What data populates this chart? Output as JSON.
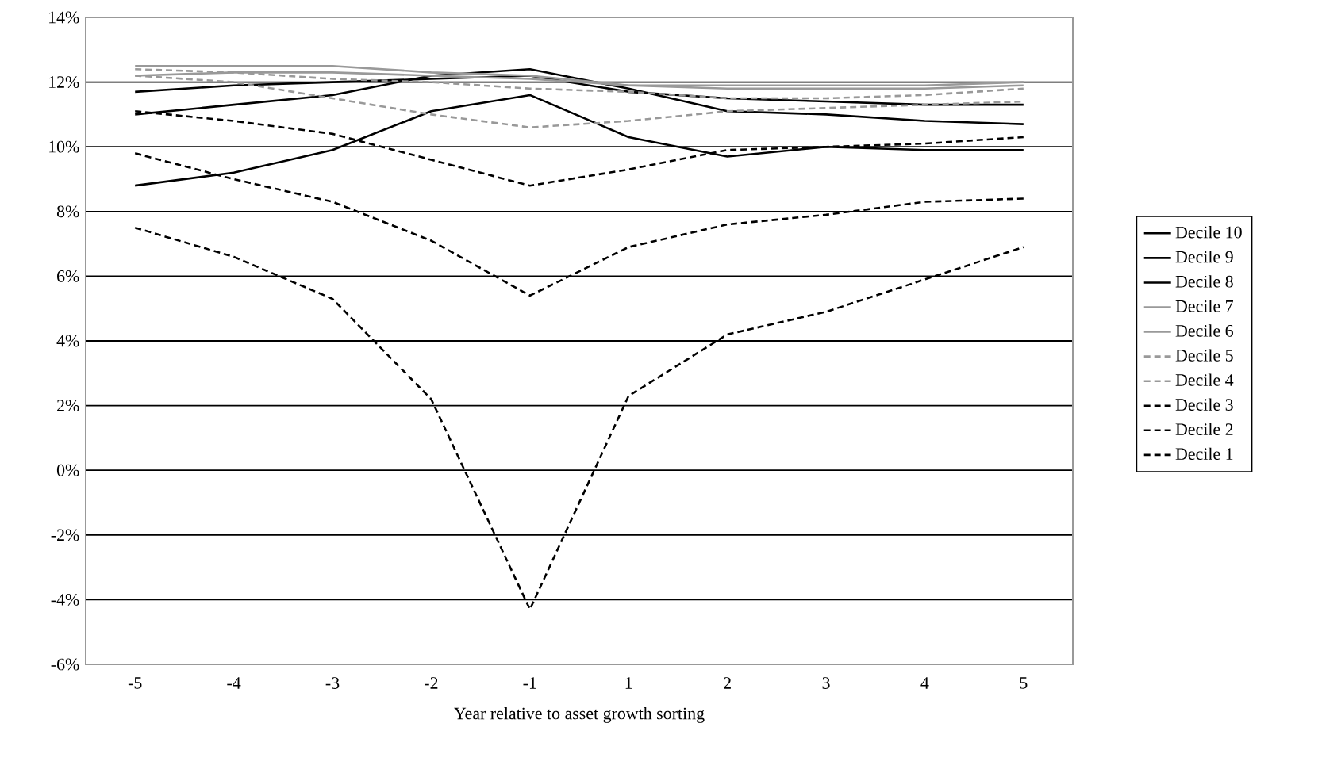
{
  "chart_data": {
    "type": "line",
    "xlabel": "Year relative to asset growth sorting",
    "categories": [
      "-5",
      "-4",
      "-3",
      "-2",
      "-1",
      "1",
      "2",
      "3",
      "4",
      "5"
    ],
    "series": [
      {
        "name": "Decile 10",
        "color": "#000000",
        "line_style": "solid",
        "values": [
          8.8,
          9.2,
          9.9,
          11.1,
          11.6,
          10.3,
          9.7,
          10.0,
          9.9,
          9.9
        ]
      },
      {
        "name": "Decile 9",
        "color": "#000000",
        "line_style": "solid",
        "values": [
          11.0,
          11.3,
          11.6,
          12.2,
          12.4,
          11.8,
          11.1,
          11.0,
          10.8,
          10.7
        ]
      },
      {
        "name": "Decile 8",
        "color": "#000000",
        "line_style": "solid",
        "values": [
          11.7,
          11.9,
          12.0,
          12.1,
          12.2,
          11.7,
          11.5,
          11.4,
          11.3,
          11.3
        ]
      },
      {
        "name": "Decile 7",
        "color": "#999999",
        "line_style": "solid",
        "values": [
          12.5,
          12.5,
          12.5,
          12.3,
          12.2,
          11.9,
          11.8,
          11.8,
          11.8,
          11.9
        ]
      },
      {
        "name": "Decile 6",
        "color": "#999999",
        "line_style": "solid",
        "values": [
          12.2,
          12.3,
          12.3,
          12.2,
          12.1,
          11.9,
          11.9,
          11.9,
          11.9,
          12.0
        ]
      },
      {
        "name": "Decile 5",
        "color": "#999999",
        "line_style": "dashed",
        "values": [
          12.4,
          12.3,
          12.1,
          12.0,
          11.8,
          11.7,
          11.5,
          11.5,
          11.6,
          11.8
        ]
      },
      {
        "name": "Decile 4",
        "color": "#999999",
        "line_style": "dashed",
        "values": [
          12.2,
          12.0,
          11.5,
          11.0,
          10.6,
          10.8,
          11.1,
          11.2,
          11.3,
          11.4
        ]
      },
      {
        "name": "Decile 3",
        "color": "#000000",
        "line_style": "dashed",
        "values": [
          11.1,
          10.8,
          10.4,
          9.6,
          8.8,
          9.3,
          9.9,
          10.0,
          10.1,
          10.3
        ]
      },
      {
        "name": "Decile 2",
        "color": "#000000",
        "line_style": "dashed",
        "values": [
          9.8,
          9.0,
          8.3,
          7.1,
          5.4,
          6.9,
          7.6,
          7.9,
          8.3,
          8.4
        ]
      },
      {
        "name": "Decile 1",
        "color": "#000000",
        "line_style": "dashed",
        "values": [
          7.5,
          6.6,
          5.3,
          2.2,
          -4.3,
          2.3,
          4.2,
          4.9,
          5.9,
          6.9
        ]
      }
    ],
    "ylim": [
      -6,
      14
    ],
    "yticks": [
      {
        "value": -6,
        "label": "-6%"
      },
      {
        "value": -4,
        "label": "-4%"
      },
      {
        "value": -2,
        "label": "-2%"
      },
      {
        "value": 0,
        "label": "0%"
      },
      {
        "value": 2,
        "label": "2%"
      },
      {
        "value": 4,
        "label": "4%"
      },
      {
        "value": 6,
        "label": "6%"
      },
      {
        "value": 8,
        "label": "8%"
      },
      {
        "value": 10,
        "label": "10%"
      },
      {
        "value": 12,
        "label": "12%"
      },
      {
        "value": 14,
        "label": "14%"
      }
    ],
    "grid": "y",
    "legend": "right",
    "marker": "none"
  }
}
